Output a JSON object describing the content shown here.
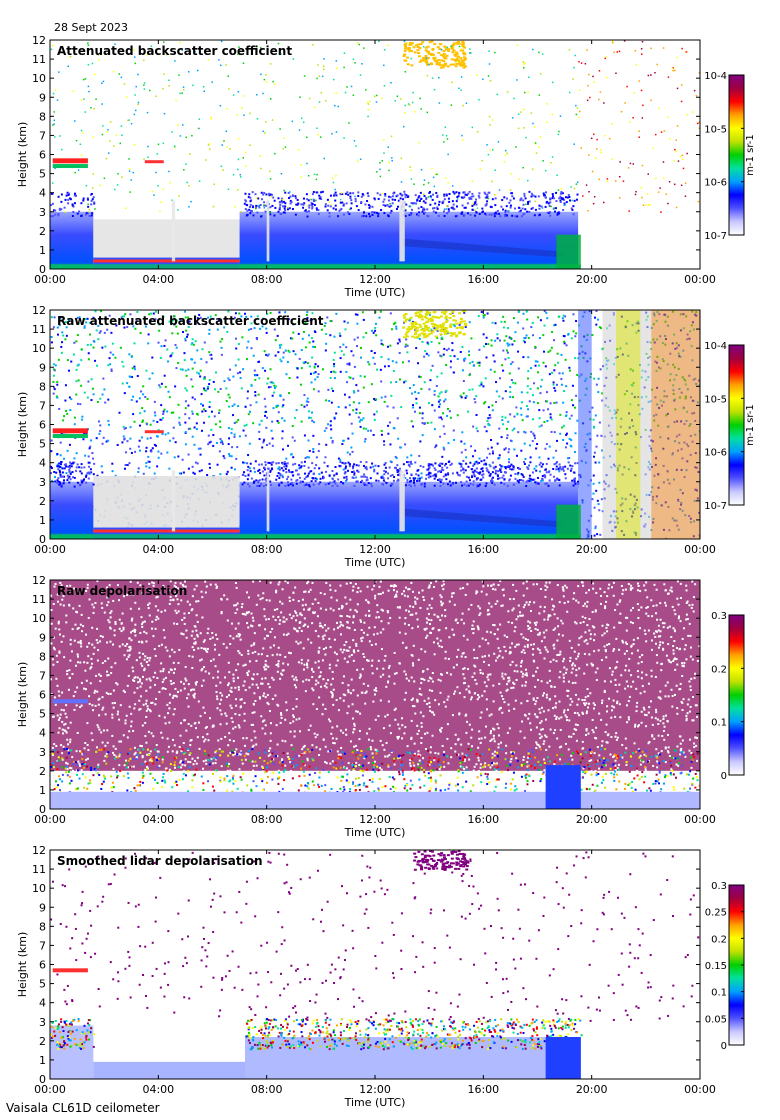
{
  "header": {
    "date": "28 Sept 2023"
  },
  "footer": {
    "instrument": "Vaisala CL61D ceilometer"
  },
  "colors": {
    "cloud": "#8b003a",
    "low_density": "#e0e0e0",
    "colormap": [
      "#ffffff",
      "#c8c8ff",
      "#5050ff",
      "#0000ff",
      "#00a0ff",
      "#00e0a0",
      "#00d000",
      "#c0e000",
      "#ffff00",
      "#ffa000",
      "#ff0000",
      "#a00040",
      "#800080"
    ]
  },
  "chart_data": [
    {
      "type": "heatmap",
      "title": "Attenuated backscatter coefficient",
      "xlabel": "Time (UTC)",
      "ylabel": "Height (km)",
      "x_ticks": [
        "00:00",
        "04:00",
        "08:00",
        "12:00",
        "16:00",
        "20:00",
        "00:00"
      ],
      "xlim_hours": [
        0,
        24
      ],
      "y_ticks": [
        "0",
        "1",
        "2",
        "3",
        "4",
        "5",
        "6",
        "7",
        "8",
        "9",
        "10",
        "11",
        "12"
      ],
      "ylim_km": [
        0,
        12
      ],
      "colorbar": {
        "ticks": [
          "10-7",
          "10-6",
          "10-5",
          "10-4"
        ],
        "label": "m-1 sr-1",
        "scale": "log"
      },
      "features": {
        "cloud_layer_km": 5.6,
        "cloud_hours": [
          0.1,
          1.4
        ],
        "boundary_layer_top_km": 3.0,
        "clear_gap_hours": [
          1.6,
          7.0
        ]
      }
    },
    {
      "type": "heatmap",
      "title": "Raw attenuated backscatter coefficient",
      "xlabel": "Time (UTC)",
      "ylabel": "Height (km)",
      "x_ticks": [
        "00:00",
        "04:00",
        "08:00",
        "12:00",
        "16:00",
        "20:00",
        "00:00"
      ],
      "xlim_hours": [
        0,
        24
      ],
      "y_ticks": [
        "0",
        "1",
        "2",
        "3",
        "4",
        "5",
        "6",
        "7",
        "8",
        "9",
        "10",
        "11",
        "12"
      ],
      "ylim_km": [
        0,
        12
      ],
      "colorbar": {
        "ticks": [
          "10-7",
          "10-6",
          "10-5",
          "10-4"
        ],
        "label": "m-1 sr-1",
        "scale": "log"
      },
      "features": {
        "cloud_layer_km": 5.6,
        "noise_increase_after_hour": 19.5
      }
    },
    {
      "type": "heatmap",
      "title": "Raw depolarisation",
      "xlabel": "Time (UTC)",
      "ylabel": "Height (km)",
      "x_ticks": [
        "00:00",
        "04:00",
        "08:00",
        "12:00",
        "16:00",
        "20:00",
        "00:00"
      ],
      "xlim_hours": [
        0,
        24
      ],
      "y_ticks": [
        "0",
        "1",
        "2",
        "3",
        "4",
        "5",
        "6",
        "7",
        "8",
        "9",
        "10",
        "11",
        "12"
      ],
      "ylim_km": [
        0,
        12
      ],
      "colorbar": {
        "ticks": [
          "0",
          "0.1",
          "0.2",
          "0.3"
        ],
        "label": "",
        "scale": "linear"
      },
      "features": {
        "saturated_above_km": 2.0
      }
    },
    {
      "type": "heatmap",
      "title": "Smoothed lidar depolarisation",
      "xlabel": "Time (UTC)",
      "ylabel": "Height (km)",
      "x_ticks": [
        "00:00",
        "04:00",
        "08:00",
        "12:00",
        "16:00",
        "20:00",
        "00:00"
      ],
      "xlim_hours": [
        0,
        24
      ],
      "y_ticks": [
        "0",
        "1",
        "2",
        "3",
        "4",
        "5",
        "6",
        "7",
        "8",
        "9",
        "10",
        "11",
        "12"
      ],
      "ylim_km": [
        0,
        12
      ],
      "colorbar": {
        "ticks": [
          "0",
          "0.05",
          "0.1",
          "0.15",
          "0.2",
          "0.25",
          "0.3"
        ],
        "label": "",
        "scale": "linear"
      },
      "features": {
        "boundary_layer_top_km": 3.0
      }
    }
  ]
}
